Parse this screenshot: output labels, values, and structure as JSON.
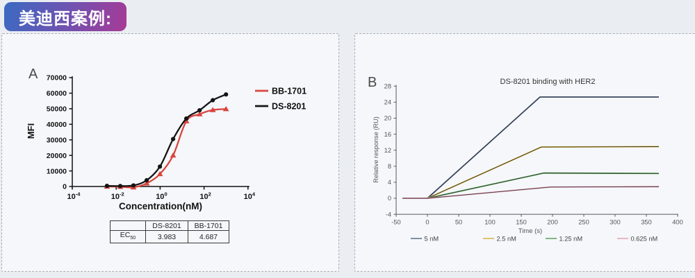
{
  "page": {
    "badge": "美迪西案例:"
  },
  "panelA": {
    "label": "A",
    "table": {
      "headers": [
        "",
        "DS-8201",
        "BB-1701"
      ],
      "row": {
        "label_base": "EC",
        "label_sub": "50",
        "values": [
          "3.983",
          "4.687"
        ]
      }
    }
  },
  "panelB": {
    "label": "B",
    "title": "DS-8201 binding with HER2"
  },
  "chart_data": [
    {
      "panel": "A",
      "type": "scatter",
      "title": "",
      "xlabel": "Concentration(nM)",
      "ylabel": "MFI",
      "xscale": "log10",
      "xtick_exponents": [
        -4,
        -2,
        0,
        2,
        4
      ],
      "xlim_exponents": [
        -4,
        4
      ],
      "ylim": [
        0,
        70000
      ],
      "yticks": [
        0,
        10000,
        20000,
        30000,
        40000,
        50000,
        60000,
        70000
      ],
      "legend_position": "right",
      "axis_color": "#111111",
      "series": [
        {
          "name": "BB-1701",
          "color": "#d8453f",
          "marker": "triangle",
          "x": [
            0.0038,
            0.0153,
            0.061,
            0.244,
            0.977,
            3.9,
            15.6,
            62.5,
            250,
            1000
          ],
          "y": [
            0,
            -200,
            -500,
            2000,
            8000,
            20000,
            42000,
            46500,
            49200,
            49800
          ]
        },
        {
          "name": "DS-8201",
          "color": "#141414",
          "marker": "circle",
          "x": [
            0.0038,
            0.0153,
            0.061,
            0.244,
            0.977,
            3.9,
            15.6,
            62.5,
            250,
            1000
          ],
          "y": [
            400,
            300,
            700,
            4000,
            12800,
            30500,
            43700,
            49000,
            55500,
            59200
          ]
        }
      ],
      "ec50_table": {
        "DS-8201": 3.983,
        "BB-1701": 4.687
      }
    },
    {
      "panel": "B",
      "type": "line",
      "title": "DS-8201 binding with HER2",
      "xlabel": "Time (s)",
      "ylabel": "Relative response (RU)",
      "xlim": [
        -50,
        400
      ],
      "xticks": [
        -50,
        0,
        50,
        100,
        150,
        200,
        250,
        300,
        350,
        400
      ],
      "ylim": [
        -4,
        28
      ],
      "yticks": [
        -4,
        0,
        4,
        8,
        12,
        16,
        20,
        24,
        28
      ],
      "legend_position": "bottom",
      "axis_color": "#5a5a5a",
      "series": [
        {
          "name": "5 nM",
          "color": "#64748f",
          "fit_color": "#242b3a",
          "x": [
            -40,
            0,
            180,
            370
          ],
          "y": [
            0,
            0,
            25.3,
            25.3
          ]
        },
        {
          "name": "2.5 nM",
          "color": "#d9b84e",
          "fit_color": "#3c3418",
          "x": [
            -40,
            0,
            182,
            370
          ],
          "y": [
            0,
            0,
            12.8,
            12.9
          ]
        },
        {
          "name": "1.25 nM",
          "color": "#67a267",
          "fit_color": "#24411f",
          "x": [
            -40,
            0,
            186,
            370
          ],
          "y": [
            0,
            0,
            6.3,
            6.2
          ]
        },
        {
          "name": "0.625 nM",
          "color": "#e9a4b6",
          "fit_color": "#433238",
          "x": [
            -40,
            0,
            196,
            370
          ],
          "y": [
            0,
            0,
            2.8,
            2.9
          ]
        }
      ]
    }
  ]
}
